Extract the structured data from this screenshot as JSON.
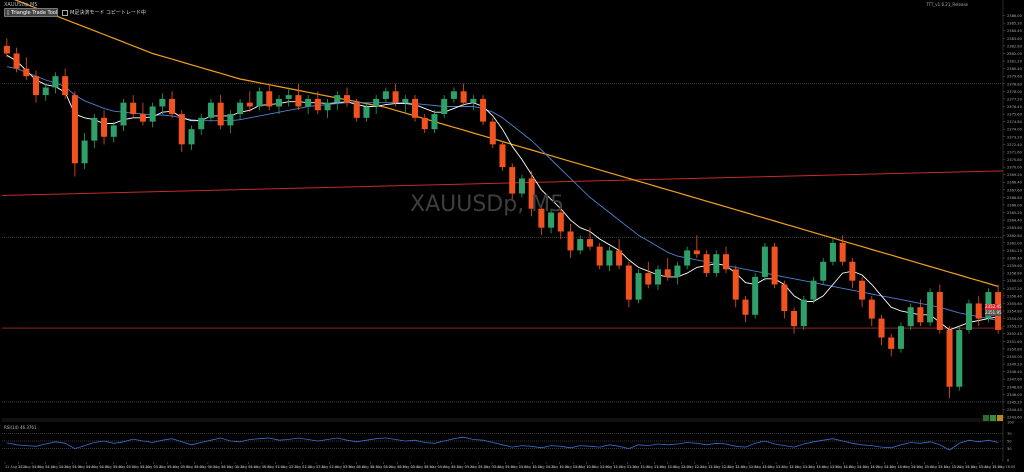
{
  "header": {
    "symbol_label": "XAUUSDp,M5",
    "trade_button": {
      "label": "Triangle Trade Tool",
      "icon": "checkbox-icon"
    },
    "status": {
      "label": "M足決済モード コピートレード中",
      "icon": "checkbox-icon"
    }
  },
  "top_right_label": "TTT_v1.6.21_Release",
  "watermark": "XAUUSDp, M5",
  "rsi_label": "RSI(14) 46.3761",
  "colors": {
    "background": "#000000",
    "bull_candle": "#2fa06a",
    "bear_candle": "#f0531f",
    "ma_fast": "#ffffff",
    "ma_mid": "#4f7fd0",
    "ma_slow": "#f0a020",
    "resistance_line": "#c42a2a",
    "rsi_line": "#3a6fd0"
  },
  "price_tags": {
    "bid": "2352.45",
    "last": "2351.95"
  },
  "chart_data": {
    "type": "candlestick",
    "symbol": "XAUUSDp",
    "timeframe": "M5",
    "ylim": [
      2343.5,
      2386.8
    ],
    "y_ticks": [
      "2386.00",
      "2385.20",
      "2384.40",
      "2383.60",
      "2382.80",
      "2382.00",
      "2381.20",
      "2380.40",
      "2379.60",
      "2378.80",
      "2378.00",
      "2377.20",
      "2376.40",
      "2375.60",
      "2374.80",
      "2374.00",
      "2373.20",
      "2372.40",
      "2371.60",
      "2370.80",
      "2370.00",
      "2369.20",
      "2368.40",
      "2367.60",
      "2366.80",
      "2366.00",
      "2365.20",
      "2364.40",
      "2363.60",
      "2362.80",
      "2362.00",
      "2361.20",
      "2360.40",
      "2359.60",
      "2358.80",
      "2358.00",
      "2357.20",
      "2356.40",
      "2355.60",
      "2354.80",
      "2354.00",
      "2353.20",
      "2352.40",
      "2351.60",
      "2350.80",
      "2350.00",
      "2349.20",
      "2348.40",
      "2347.60",
      "2346.80",
      "2346.00",
      "2345.20",
      "2344.40",
      "2343.60"
    ],
    "x_ticks": [
      "11 Aug 2023",
      "11 Aug 04:00",
      "11 Aug 04:10",
      "11 Aug 04:20",
      "11 Aug 04:30",
      "11 Aug 04:40",
      "11 Aug 04:50",
      "11 Aug 05:00",
      "11 Aug 05:10",
      "11 Aug 05:20",
      "11 Aug 05:30",
      "11 Aug 05:40",
      "11 Aug 05:50",
      "11 Aug 06:00",
      "11 Aug 06:10",
      "11 Aug 06:20",
      "11 Aug 06:30",
      "11 Aug 06:40",
      "11 Aug 06:50",
      "11 Aug 07:00",
      "11 Aug 07:10",
      "11 Aug 07:20",
      "11 Aug 07:30",
      "11 Aug 07:40",
      "11 Aug 07:50",
      "11 Aug 08:00",
      "11 Aug 08:10",
      "11 Aug 08:20",
      "11 Aug 08:30",
      "11 Aug 08:40",
      "11 Aug 08:50",
      "11 Aug 09:00",
      "11 Aug 09:10",
      "11 Aug 09:20",
      "11 Aug 09:30",
      "11 Aug 09:40",
      "11 Aug 09:50",
      "11 Aug 10:00",
      "11 Aug 10:10",
      "11 Aug 10:20",
      "11 Aug 10:30",
      "11 Aug 10:40",
      "11 Aug 10:50",
      "11 Aug 11:00",
      "11 Aug 11:10",
      "11 Aug 11:20",
      "11 Aug 11:30",
      "11 Aug 11:40",
      "11 Aug 11:50",
      "11 Aug 12:00",
      "11 Aug 12:10",
      "11 Aug 12:20",
      "11 Aug 12:30",
      "11 Aug 12:40",
      "11 Aug 12:50",
      "11 Aug 13:00",
      "11 Aug 13:10",
      "11 Aug 13:20",
      "11 Aug 13:30",
      "11 Aug 13:40",
      "11 Aug 13:50",
      "11 Aug 14:00",
      "11 Aug 14:10",
      "11 Aug 14:20",
      "11 Aug 14:30",
      "11 Aug 14:40",
      "11 Aug 14:50",
      "11 Aug 15:00",
      "11 Aug 15:10",
      "11 Aug 15:20",
      "11 Aug 15:30",
      "11 Aug 15:40",
      "11 Aug 15:50",
      "11 Aug 16:00"
    ],
    "candles": [
      [
        2382.8,
        2383.6,
        2381.6,
        2382.0
      ],
      [
        2382.0,
        2382.6,
        2380.0,
        2380.4
      ],
      [
        2380.4,
        2381.6,
        2379.2,
        2379.6
      ],
      [
        2379.6,
        2380.2,
        2376.8,
        2377.6
      ],
      [
        2377.6,
        2378.8,
        2377.0,
        2378.4
      ],
      [
        2378.4,
        2380.0,
        2377.8,
        2379.6
      ],
      [
        2379.6,
        2380.4,
        2377.2,
        2377.6
      ],
      [
        2377.6,
        2378.0,
        2369.0,
        2370.4
      ],
      [
        2370.4,
        2373.6,
        2369.8,
        2372.8
      ],
      [
        2372.8,
        2375.6,
        2372.0,
        2375.2
      ],
      [
        2375.2,
        2376.0,
        2372.4,
        2373.2
      ],
      [
        2373.2,
        2374.8,
        2372.6,
        2374.4
      ],
      [
        2374.4,
        2377.2,
        2373.8,
        2376.8
      ],
      [
        2376.8,
        2377.6,
        2375.2,
        2375.6
      ],
      [
        2375.6,
        2376.8,
        2374.4,
        2374.8
      ],
      [
        2374.8,
        2376.8,
        2374.2,
        2376.4
      ],
      [
        2376.4,
        2377.8,
        2375.6,
        2377.2
      ],
      [
        2377.2,
        2378.0,
        2375.2,
        2375.6
      ],
      [
        2375.6,
        2376.0,
        2371.6,
        2372.4
      ],
      [
        2372.4,
        2374.4,
        2371.8,
        2374.0
      ],
      [
        2374.0,
        2375.6,
        2373.4,
        2375.2
      ],
      [
        2375.2,
        2377.2,
        2374.8,
        2376.8
      ],
      [
        2376.8,
        2377.6,
        2374.0,
        2374.4
      ],
      [
        2374.4,
        2376.0,
        2373.6,
        2375.6
      ],
      [
        2375.6,
        2377.2,
        2375.0,
        2376.8
      ],
      [
        2376.8,
        2378.0,
        2375.8,
        2376.4
      ],
      [
        2376.4,
        2378.4,
        2376.0,
        2378.0
      ],
      [
        2378.0,
        2378.8,
        2376.0,
        2376.4
      ],
      [
        2376.4,
        2377.6,
        2375.6,
        2377.2
      ],
      [
        2377.2,
        2378.4,
        2376.4,
        2377.6
      ],
      [
        2377.6,
        2378.8,
        2376.0,
        2376.4
      ],
      [
        2376.4,
        2377.6,
        2375.6,
        2377.2
      ],
      [
        2377.2,
        2378.0,
        2375.6,
        2376.0
      ],
      [
        2376.0,
        2377.2,
        2375.2,
        2376.8
      ],
      [
        2376.8,
        2378.0,
        2376.0,
        2377.6
      ],
      [
        2377.6,
        2378.4,
        2376.4,
        2376.8
      ],
      [
        2376.8,
        2377.2,
        2374.8,
        2375.2
      ],
      [
        2375.2,
        2376.8,
        2374.8,
        2376.4
      ],
      [
        2376.4,
        2377.6,
        2375.6,
        2377.2
      ],
      [
        2377.2,
        2378.4,
        2376.8,
        2378.0
      ],
      [
        2378.0,
        2378.8,
        2376.4,
        2376.8
      ],
      [
        2376.8,
        2377.6,
        2375.6,
        2377.2
      ],
      [
        2377.2,
        2377.6,
        2374.8,
        2375.2
      ],
      [
        2375.2,
        2375.6,
        2373.6,
        2374.0
      ],
      [
        2374.0,
        2376.0,
        2373.6,
        2375.6
      ],
      [
        2375.6,
        2377.6,
        2375.2,
        2377.2
      ],
      [
        2377.2,
        2378.4,
        2376.8,
        2378.0
      ],
      [
        2378.0,
        2378.8,
        2376.4,
        2376.8
      ],
      [
        2376.8,
        2377.6,
        2376.0,
        2377.2
      ],
      [
        2377.2,
        2377.6,
        2374.4,
        2374.8
      ],
      [
        2374.8,
        2375.2,
        2372.0,
        2372.4
      ],
      [
        2372.4,
        2372.8,
        2369.6,
        2370.0
      ],
      [
        2370.0,
        2370.4,
        2366.4,
        2367.2
      ],
      [
        2367.2,
        2369.2,
        2366.8,
        2368.8
      ],
      [
        2368.8,
        2369.6,
        2364.8,
        2365.6
      ],
      [
        2365.6,
        2366.0,
        2362.8,
        2363.6
      ],
      [
        2363.6,
        2365.6,
        2363.0,
        2365.2
      ],
      [
        2365.2,
        2366.0,
        2362.4,
        2363.2
      ],
      [
        2363.2,
        2364.0,
        2360.4,
        2361.2
      ],
      [
        2361.2,
        2362.8,
        2360.8,
        2362.4
      ],
      [
        2362.4,
        2363.6,
        2361.2,
        2361.6
      ],
      [
        2361.6,
        2362.0,
        2359.2,
        2359.6
      ],
      [
        2359.6,
        2361.6,
        2359.0,
        2361.2
      ],
      [
        2361.2,
        2362.4,
        2359.2,
        2359.6
      ],
      [
        2359.6,
        2360.0,
        2355.2,
        2356.0
      ],
      [
        2356.0,
        2359.2,
        2355.6,
        2358.8
      ],
      [
        2358.8,
        2360.0,
        2357.2,
        2357.6
      ],
      [
        2357.6,
        2359.6,
        2357.0,
        2359.2
      ],
      [
        2359.2,
        2360.4,
        2358.0,
        2358.4
      ],
      [
        2358.4,
        2360.0,
        2357.6,
        2359.6
      ],
      [
        2359.6,
        2361.6,
        2359.2,
        2361.2
      ],
      [
        2361.2,
        2362.8,
        2360.4,
        2360.8
      ],
      [
        2360.8,
        2361.2,
        2358.4,
        2358.8
      ],
      [
        2358.8,
        2361.2,
        2358.4,
        2360.8
      ],
      [
        2360.8,
        2361.6,
        2358.8,
        2359.2
      ],
      [
        2359.2,
        2359.6,
        2355.2,
        2356.0
      ],
      [
        2356.0,
        2356.4,
        2353.6,
        2354.4
      ],
      [
        2354.4,
        2358.8,
        2354.0,
        2358.4
      ],
      [
        2358.4,
        2362.0,
        2358.0,
        2361.6
      ],
      [
        2361.6,
        2362.0,
        2357.2,
        2357.6
      ],
      [
        2357.6,
        2358.0,
        2354.0,
        2354.8
      ],
      [
        2354.8,
        2355.2,
        2352.4,
        2353.2
      ],
      [
        2353.2,
        2356.4,
        2352.8,
        2356.0
      ],
      [
        2356.0,
        2358.4,
        2355.6,
        2358.0
      ],
      [
        2358.0,
        2360.4,
        2357.6,
        2360.0
      ],
      [
        2360.0,
        2362.4,
        2359.6,
        2362.0
      ],
      [
        2362.0,
        2362.8,
        2359.6,
        2360.0
      ],
      [
        2360.0,
        2360.4,
        2357.2,
        2358.0
      ],
      [
        2358.0,
        2358.4,
        2355.2,
        2356.0
      ],
      [
        2356.0,
        2356.4,
        2353.2,
        2354.0
      ],
      [
        2354.0,
        2354.4,
        2351.2,
        2352.0
      ],
      [
        2352.0,
        2352.4,
        2350.0,
        2350.8
      ],
      [
        2350.8,
        2353.6,
        2350.4,
        2353.2
      ],
      [
        2353.2,
        2355.6,
        2352.8,
        2355.2
      ],
      [
        2355.2,
        2356.0,
        2353.2,
        2353.6
      ],
      [
        2353.6,
        2357.2,
        2353.2,
        2356.8
      ],
      [
        2356.8,
        2357.6,
        2352.4,
        2352.8
      ],
      [
        2352.8,
        2353.2,
        2345.6,
        2346.8
      ],
      [
        2346.8,
        2353.2,
        2346.4,
        2352.8
      ],
      [
        2352.8,
        2356.0,
        2352.4,
        2355.6
      ],
      [
        2355.6,
        2356.4,
        2353.2,
        2354.0
      ],
      [
        2354.0,
        2357.2,
        2353.6,
        2356.8
      ],
      [
        2356.8,
        2357.6,
        2352.4,
        2352.8
      ]
    ],
    "ma_fast": [
      2381.8,
      2381.2,
      2380.2,
      2379.2,
      2378.7,
      2378.5,
      2377.9,
      2375.6,
      2375.2,
      2375.0,
      2374.6,
      2374.6,
      2375.0,
      2375.2,
      2375.2,
      2375.3,
      2375.8,
      2375.9,
      2375.2,
      2374.9,
      2374.9,
      2375.4,
      2375.4,
      2375.4,
      2375.8,
      2376.0,
      2376.5,
      2376.6,
      2376.7,
      2376.9,
      2376.9,
      2376.8,
      2376.8,
      2376.7,
      2376.8,
      2376.9,
      2376.6,
      2376.4,
      2376.4,
      2376.6,
      2376.7,
      2376.7,
      2376.6,
      2376.2,
      2375.8,
      2375.8,
      2376.2,
      2376.6,
      2376.8,
      2376.4,
      2375.4,
      2374.0,
      2372.2,
      2370.8,
      2369.2,
      2367.6,
      2366.6,
      2365.6,
      2364.4,
      2363.6,
      2363.2,
      2362.4,
      2361.8,
      2361.2,
      2360.2,
      2359.4,
      2359.0,
      2358.6,
      2358.4,
      2358.4,
      2358.8,
      2359.4,
      2359.6,
      2359.8,
      2359.6,
      2358.8,
      2357.8,
      2357.6,
      2358.2,
      2358.2,
      2357.6,
      2356.4,
      2355.8,
      2355.8,
      2356.4,
      2357.6,
      2358.8,
      2359.0,
      2358.6,
      2357.6,
      2356.4,
      2355.2,
      2354.8,
      2354.6,
      2354.4,
      2354.4,
      2353.6,
      2352.8,
      2353.2,
      2353.6,
      2353.8,
      2354.0,
      2354.2
    ],
    "ma_mid": [
      2380.6,
      2380.4,
      2380.0,
      2379.6,
      2379.2,
      2378.9,
      2378.5,
      2377.6,
      2377.0,
      2376.6,
      2376.2,
      2375.9,
      2375.8,
      2375.7,
      2375.6,
      2375.5,
      2375.5,
      2375.4,
      2375.2,
      2375.0,
      2374.9,
      2374.9,
      2374.9,
      2374.9,
      2375.0,
      2375.2,
      2375.4,
      2375.6,
      2375.8,
      2376.0,
      2376.2,
      2376.4,
      2376.5,
      2376.6,
      2376.7,
      2376.8,
      2376.8,
      2376.8,
      2376.8,
      2376.8,
      2376.8,
      2376.8,
      2376.7,
      2376.6,
      2376.5,
      2376.4,
      2376.4,
      2376.4,
      2376.4,
      2376.2,
      2375.8,
      2375.2,
      2374.4,
      2373.6,
      2372.8,
      2371.8,
      2370.8,
      2369.8,
      2368.8,
      2367.8,
      2366.8,
      2366.0,
      2365.2,
      2364.4,
      2363.6,
      2362.8,
      2362.2,
      2361.6,
      2361.0,
      2360.6,
      2360.4,
      2360.2,
      2360.0,
      2359.8,
      2359.6,
      2359.4,
      2359.2,
      2359.0,
      2358.8,
      2358.6,
      2358.4,
      2358.2,
      2358.0,
      2357.8,
      2357.6,
      2357.4,
      2357.2,
      2357.0,
      2356.8,
      2356.6,
      2356.4,
      2356.2,
      2356.0,
      2355.8,
      2355.6,
      2355.4,
      2355.2,
      2354.9,
      2354.6,
      2354.4,
      2354.2,
      2354.0,
      2353.8
    ],
    "ma_slow": [
      2388.0,
      2387.6,
      2387.2,
      2386.8,
      2386.4,
      2386.0,
      2385.6,
      2385.2,
      2384.8,
      2384.4,
      2384.0,
      2383.6,
      2383.2,
      2382.8,
      2382.4,
      2382.0,
      2381.7,
      2381.4,
      2381.1,
      2380.8,
      2380.5,
      2380.2,
      2379.9,
      2379.6,
      2379.3,
      2379.1,
      2378.9,
      2378.7,
      2378.5,
      2378.3,
      2378.1,
      2377.9,
      2377.7,
      2377.5,
      2377.3,
      2377.1,
      2376.9,
      2376.7,
      2376.5,
      2376.3,
      2376.0,
      2375.7,
      2375.4,
      2375.1,
      2374.8,
      2374.5,
      2374.2,
      2373.9,
      2373.6,
      2373.3,
      2373.0,
      2372.7,
      2372.4,
      2372.1,
      2371.8,
      2371.5,
      2371.2,
      2370.9,
      2370.6,
      2370.3,
      2370.0,
      2369.7,
      2369.4,
      2369.1,
      2368.8,
      2368.5,
      2368.2,
      2367.9,
      2367.6,
      2367.3,
      2367.0,
      2366.7,
      2366.4,
      2366.1,
      2365.8,
      2365.5,
      2365.2,
      2364.9,
      2364.6,
      2364.3,
      2364.0,
      2363.7,
      2363.4,
      2363.1,
      2362.8,
      2362.5,
      2362.2,
      2361.9,
      2361.6,
      2361.3,
      2361.0,
      2360.7,
      2360.4,
      2360.1,
      2359.8,
      2359.5,
      2359.2,
      2358.9,
      2358.6,
      2358.3,
      2358.0,
      2357.7,
      2357.4
    ],
    "resistance_line": [
      2367.0,
      2369.6
    ],
    "horizontal_levels": [
      2378.8,
      2362.6,
      2353.0,
      2345.2
    ],
    "rsi": {
      "name": "RSI(14)",
      "ylim": [
        0,
        100
      ],
      "levels": [
        70,
        50,
        30
      ],
      "ticks": [
        "100",
        "70",
        "50",
        "30",
        "0"
      ],
      "values": [
        45,
        40,
        38,
        36,
        42,
        48,
        44,
        30,
        38,
        46,
        50,
        44,
        48,
        55,
        50,
        46,
        52,
        56,
        48,
        40,
        46,
        52,
        58,
        50,
        48,
        54,
        56,
        58,
        52,
        54,
        58,
        54,
        50,
        54,
        58,
        52,
        48,
        52,
        56,
        58,
        54,
        50,
        52,
        46,
        44,
        50,
        56,
        60,
        54,
        52,
        46,
        40,
        34,
        38,
        36,
        32,
        38,
        36,
        32,
        38,
        36,
        34,
        40,
        36,
        30,
        40,
        38,
        42,
        40,
        42,
        46,
        44,
        40,
        44,
        42,
        36,
        34,
        44,
        50,
        42,
        38,
        34,
        42,
        48,
        52,
        56,
        50,
        44,
        40,
        38,
        34,
        32,
        40,
        46,
        44,
        48,
        40,
        26,
        44,
        52,
        48,
        52,
        46
      ]
    }
  }
}
